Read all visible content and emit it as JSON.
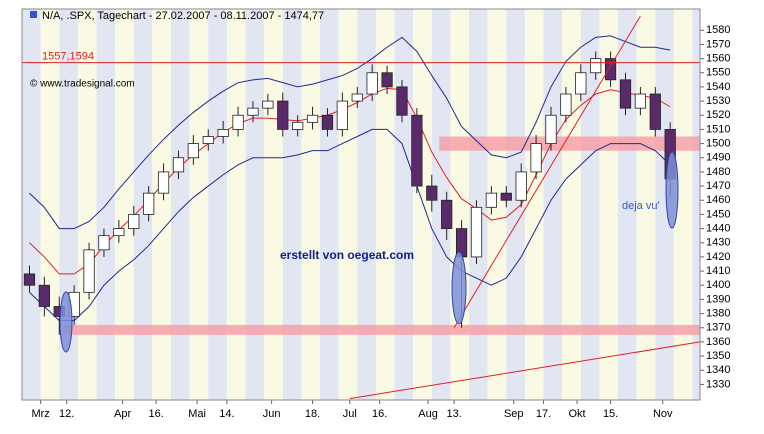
{
  "chart_data": {
    "type": "candlestick",
    "title": "N/A, .SPX, Tagechart - 27.02.2007 - 08.11.2007 - 1474,77",
    "copyright": "© www.tradesignal.com",
    "annotation": "erstellt von oegeat.com",
    "annotation2": "deja vu'",
    "xlim": [
      -1,
      181
    ],
    "xticks": [
      {
        "value": 4,
        "label": "Mrz"
      },
      {
        "value": 11,
        "label": "12."
      },
      {
        "value": 26,
        "label": "Apr"
      },
      {
        "value": 35,
        "label": "16."
      },
      {
        "value": 46,
        "label": "Mai"
      },
      {
        "value": 54,
        "label": "14."
      },
      {
        "value": 66,
        "label": "Jun"
      },
      {
        "value": 77,
        "label": "18."
      },
      {
        "value": 87,
        "label": "Jul"
      },
      {
        "value": 95,
        "label": "16."
      },
      {
        "value": 108,
        "label": "Aug"
      },
      {
        "value": 115,
        "label": "13."
      },
      {
        "value": 131,
        "label": "Sep"
      },
      {
        "value": 139,
        "label": "17."
      },
      {
        "value": 148,
        "label": "Okt"
      },
      {
        "value": 157,
        "label": "15."
      },
      {
        "value": 171,
        "label": "Nov"
      }
    ],
    "ylim": [
      1319,
      1595
    ],
    "yticks": [
      1330,
      1340,
      1350,
      1360,
      1370,
      1380,
      1390,
      1400,
      1410,
      1420,
      1430,
      1440,
      1450,
      1460,
      1470,
      1480,
      1490,
      1500,
      1510,
      1520,
      1530,
      1540,
      1550,
      1560,
      1570,
      1580
    ],
    "x": [
      1,
      5,
      9,
      13,
      17,
      21,
      25,
      29,
      33,
      37,
      41,
      45,
      49,
      53,
      57,
      61,
      65,
      69,
      73,
      77,
      81,
      85,
      89,
      93,
      97,
      101,
      105,
      109,
      113,
      117,
      121,
      125,
      129,
      133,
      137,
      141,
      145,
      149,
      153,
      157,
      161,
      165,
      169,
      173
    ],
    "open": [
      1408,
      1400,
      1385,
      1378,
      1395,
      1425,
      1435,
      1440,
      1450,
      1465,
      1480,
      1490,
      1500,
      1505,
      1510,
      1520,
      1525,
      1530,
      1510,
      1515,
      1520,
      1510,
      1530,
      1535,
      1550,
      1540,
      1520,
      1470,
      1460,
      1440,
      1420,
      1455,
      1465,
      1460,
      1480,
      1500,
      1520,
      1535,
      1550,
      1560,
      1545,
      1525,
      1535,
      1510
    ],
    "high": [
      1414,
      1406,
      1392,
      1400,
      1430,
      1440,
      1446,
      1456,
      1470,
      1486,
      1495,
      1506,
      1510,
      1516,
      1526,
      1530,
      1535,
      1536,
      1520,
      1526,
      1525,
      1536,
      1540,
      1556,
      1555,
      1545,
      1525,
      1478,
      1466,
      1446,
      1460,
      1470,
      1470,
      1486,
      1506,
      1526,
      1540,
      1556,
      1565,
      1565,
      1550,
      1540,
      1540,
      1515
    ],
    "low": [
      1395,
      1378,
      1365,
      1372,
      1390,
      1420,
      1430,
      1435,
      1445,
      1460,
      1475,
      1485,
      1495,
      1500,
      1505,
      1515,
      1520,
      1505,
      1505,
      1510,
      1505,
      1505,
      1525,
      1530,
      1535,
      1515,
      1465,
      1452,
      1432,
      1370,
      1415,
      1450,
      1455,
      1455,
      1475,
      1495,
      1515,
      1530,
      1545,
      1540,
      1520,
      1520,
      1505,
      1462
    ],
    "close": [
      1400,
      1385,
      1378,
      1395,
      1425,
      1435,
      1440,
      1450,
      1465,
      1480,
      1490,
      1500,
      1505,
      1510,
      1520,
      1525,
      1530,
      1510,
      1515,
      1520,
      1510,
      1530,
      1535,
      1550,
      1540,
      1520,
      1470,
      1460,
      1440,
      1420,
      1455,
      1465,
      1460,
      1480,
      1500,
      1520,
      1535,
      1550,
      1560,
      1545,
      1525,
      1535,
      1510,
      1475
    ],
    "up_color": "#ffffff",
    "down_color": "#5a2a6a",
    "bands": [
      {
        "color": "#1f2a8c",
        "values": [
          1465,
          1455,
          1440,
          1440,
          1445,
          1455,
          1468,
          1480,
          1492,
          1503,
          1513,
          1522,
          1530,
          1537,
          1543,
          1545,
          1546,
          1543,
          1540,
          1542,
          1545,
          1548,
          1553,
          1560,
          1568,
          1575,
          1565,
          1548,
          1532,
          1512,
          1502,
          1492,
          1490,
          1494,
          1515,
          1540,
          1558,
          1568,
          1575,
          1576,
          1572,
          1568,
          1568,
          1566
        ]
      },
      {
        "color": "#1f2a8c",
        "values": [
          1395,
          1385,
          1375,
          1375,
          1385,
          1400,
          1410,
          1418,
          1428,
          1440,
          1452,
          1462,
          1470,
          1478,
          1485,
          1490,
          1490,
          1490,
          1492,
          1495,
          1495,
          1500,
          1505,
          1510,
          1510,
          1500,
          1470,
          1440,
          1420,
          1410,
          1405,
          1400,
          1405,
          1420,
          1440,
          1460,
          1475,
          1485,
          1495,
          1500,
          1500,
          1500,
          1495,
          1485
        ]
      },
      {
        "color": "#e02020",
        "values": [
          1430,
          1420,
          1408,
          1408,
          1415,
          1428,
          1439,
          1449,
          1460,
          1472,
          1483,
          1492,
          1500,
          1508,
          1514,
          1518,
          1518,
          1517,
          1516,
          1518,
          1520,
          1524,
          1529,
          1535,
          1539,
          1538,
          1518,
          1494,
          1476,
          1461,
          1454,
          1446,
          1448,
          1457,
          1478,
          1500,
          1517,
          1527,
          1535,
          1538,
          1536,
          1534,
          1532,
          1526
        ]
      }
    ],
    "level": {
      "value": 1557.1594,
      "label": "1557,1594",
      "color": "#e02020"
    },
    "zones": [
      {
        "from": 1495,
        "to": 1505,
        "x_from": 111,
        "color": "#f4a0a8"
      },
      {
        "from": 1365,
        "to": 1372,
        "x_from": 10,
        "color": "#f4a0a8"
      }
    ],
    "trendlines": [
      {
        "x": [
          115,
          165
        ],
        "y": [
          1370,
          1590
        ],
        "color": "#e02020"
      },
      {
        "x": [
          87,
          181
        ],
        "y": [
          1320,
          1360
        ],
        "color": "#e02020"
      }
    ]
  }
}
